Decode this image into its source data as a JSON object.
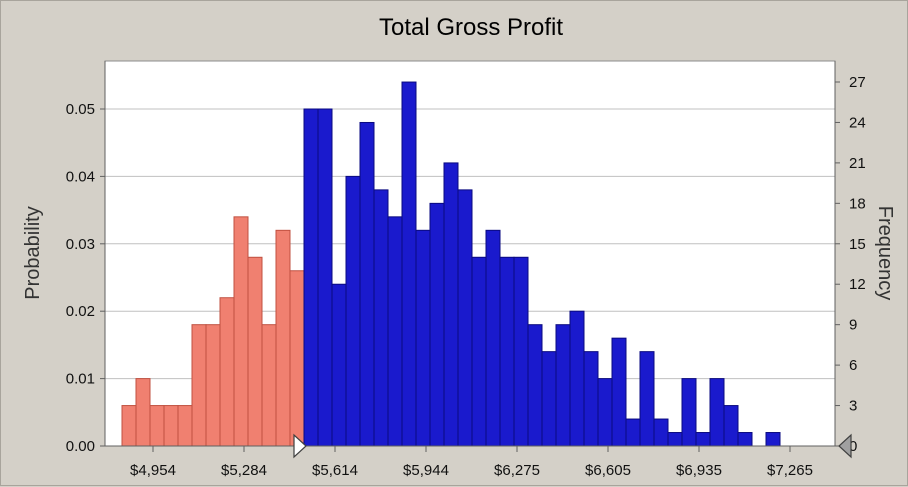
{
  "chart_data": {
    "type": "bar",
    "title": "Total Gross Profit",
    "ylabel_left": "Probability",
    "ylabel_right": "Frequency",
    "x_ticks": [
      "$4,954",
      "$5,284",
      "$5,614",
      "$5,944",
      "$6,275",
      "$6,605",
      "$6,935",
      "$7,265"
    ],
    "y_left_ticks": [
      "0.00",
      "0.01",
      "0.02",
      "0.03",
      "0.04",
      "0.05"
    ],
    "y_right_ticks": [
      "0",
      "3",
      "6",
      "9",
      "12",
      "15",
      "18",
      "21",
      "24",
      "27"
    ],
    "ylim_left": [
      0,
      0.05
    ],
    "ylim_right": [
      0,
      27
    ],
    "grid": true,
    "colors": {
      "below_threshold": "#f08070",
      "above_threshold": "#1a1acd",
      "plot_background": "#ffffff",
      "gridline": "#c0c0c0"
    },
    "threshold_bin": 13,
    "series": [
      {
        "values": [
          0.006,
          0.01,
          0.006,
          0.006,
          0.006,
          0.018,
          0.018,
          0.022,
          0.034,
          0.028,
          0.018,
          0.032,
          0.026,
          0.05,
          0.05,
          0.024,
          0.04,
          0.048,
          0.038,
          0.034,
          0.054,
          0.032,
          0.036,
          0.042,
          0.038,
          0.028,
          0.032,
          0.028,
          0.028,
          0.018,
          0.014,
          0.018,
          0.02,
          0.014,
          0.01,
          0.016,
          0.004,
          0.014,
          0.004,
          0.002,
          0.01,
          0.002,
          0.01,
          0.006,
          0.002,
          0.0,
          0.002,
          0.0,
          0.0,
          0.0
        ]
      }
    ]
  }
}
